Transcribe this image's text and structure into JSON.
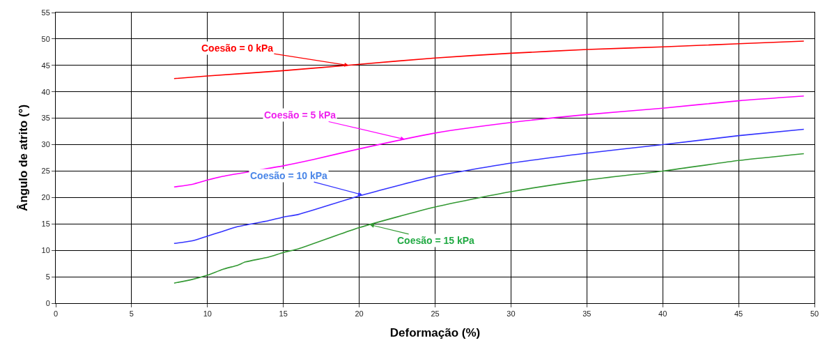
{
  "chart_data": {
    "type": "line",
    "xlabel": "Deformação (%)",
    "ylabel": "Ângulo de atrito (°)",
    "xlim": [
      0,
      50
    ],
    "xticks": [
      0,
      5,
      10,
      15,
      20,
      25,
      30,
      35,
      40,
      45,
      50
    ],
    "ylim": [
      0,
      55
    ],
    "yticks": [
      0,
      5,
      10,
      15,
      20,
      25,
      30,
      35,
      40,
      45,
      50,
      55
    ],
    "grid": true,
    "marker": "none",
    "line_style": "solid",
    "series": [
      {
        "color": "#ff0000",
        "x": [
          7.8,
          10,
          15,
          20,
          25,
          30,
          35,
          40,
          45,
          49.3
        ],
        "values": [
          42.5,
          43,
          44,
          45.2,
          46.4,
          47.3,
          48,
          48.5,
          49.1,
          49.6
        ]
      },
      {
        "color": "#ff00ff",
        "x": [
          7.8,
          9,
          10,
          11,
          15,
          17,
          20,
          25,
          30,
          35,
          40,
          45,
          49.3
        ],
        "values": [
          22,
          22.5,
          23.3,
          24,
          26,
          27.2,
          29.2,
          32.2,
          34.2,
          35.7,
          36.9,
          38.3,
          39.2
        ]
      },
      {
        "color": "#3333ff",
        "x": [
          7.8,
          9,
          10,
          11,
          12,
          14,
          15,
          16,
          20,
          25,
          30,
          35,
          40,
          45,
          49.3
        ],
        "values": [
          11.3,
          11.8,
          12.7,
          13.6,
          14.5,
          15.6,
          16.3,
          16.8,
          20.3,
          24,
          26.5,
          28.4,
          30,
          31.7,
          32.9
        ]
      },
      {
        "color": "#339933",
        "x": [
          7.8,
          9,
          10,
          11,
          12,
          12.5,
          14,
          15,
          16,
          20,
          25,
          30,
          35,
          40,
          45,
          49.3
        ],
        "values": [
          3.8,
          4.5,
          5.3,
          6.4,
          7.2,
          7.8,
          8.7,
          9.6,
          10.3,
          14.3,
          18.2,
          21.1,
          23.3,
          25,
          27,
          28.3
        ]
      }
    ],
    "annotations": [
      {
        "text": "Coesão = 0 kPa",
        "x": 19.3,
        "y": 45.0
      },
      {
        "text": "Coesão = 5 kPa",
        "x": 23,
        "y": 31.0
      },
      {
        "text": "Coesão = 10 kPa",
        "x": 20.2,
        "y": 20.5
      },
      {
        "text": "Coesão = 15 kPa",
        "x": 20.7,
        "y": 14.85
      }
    ]
  }
}
